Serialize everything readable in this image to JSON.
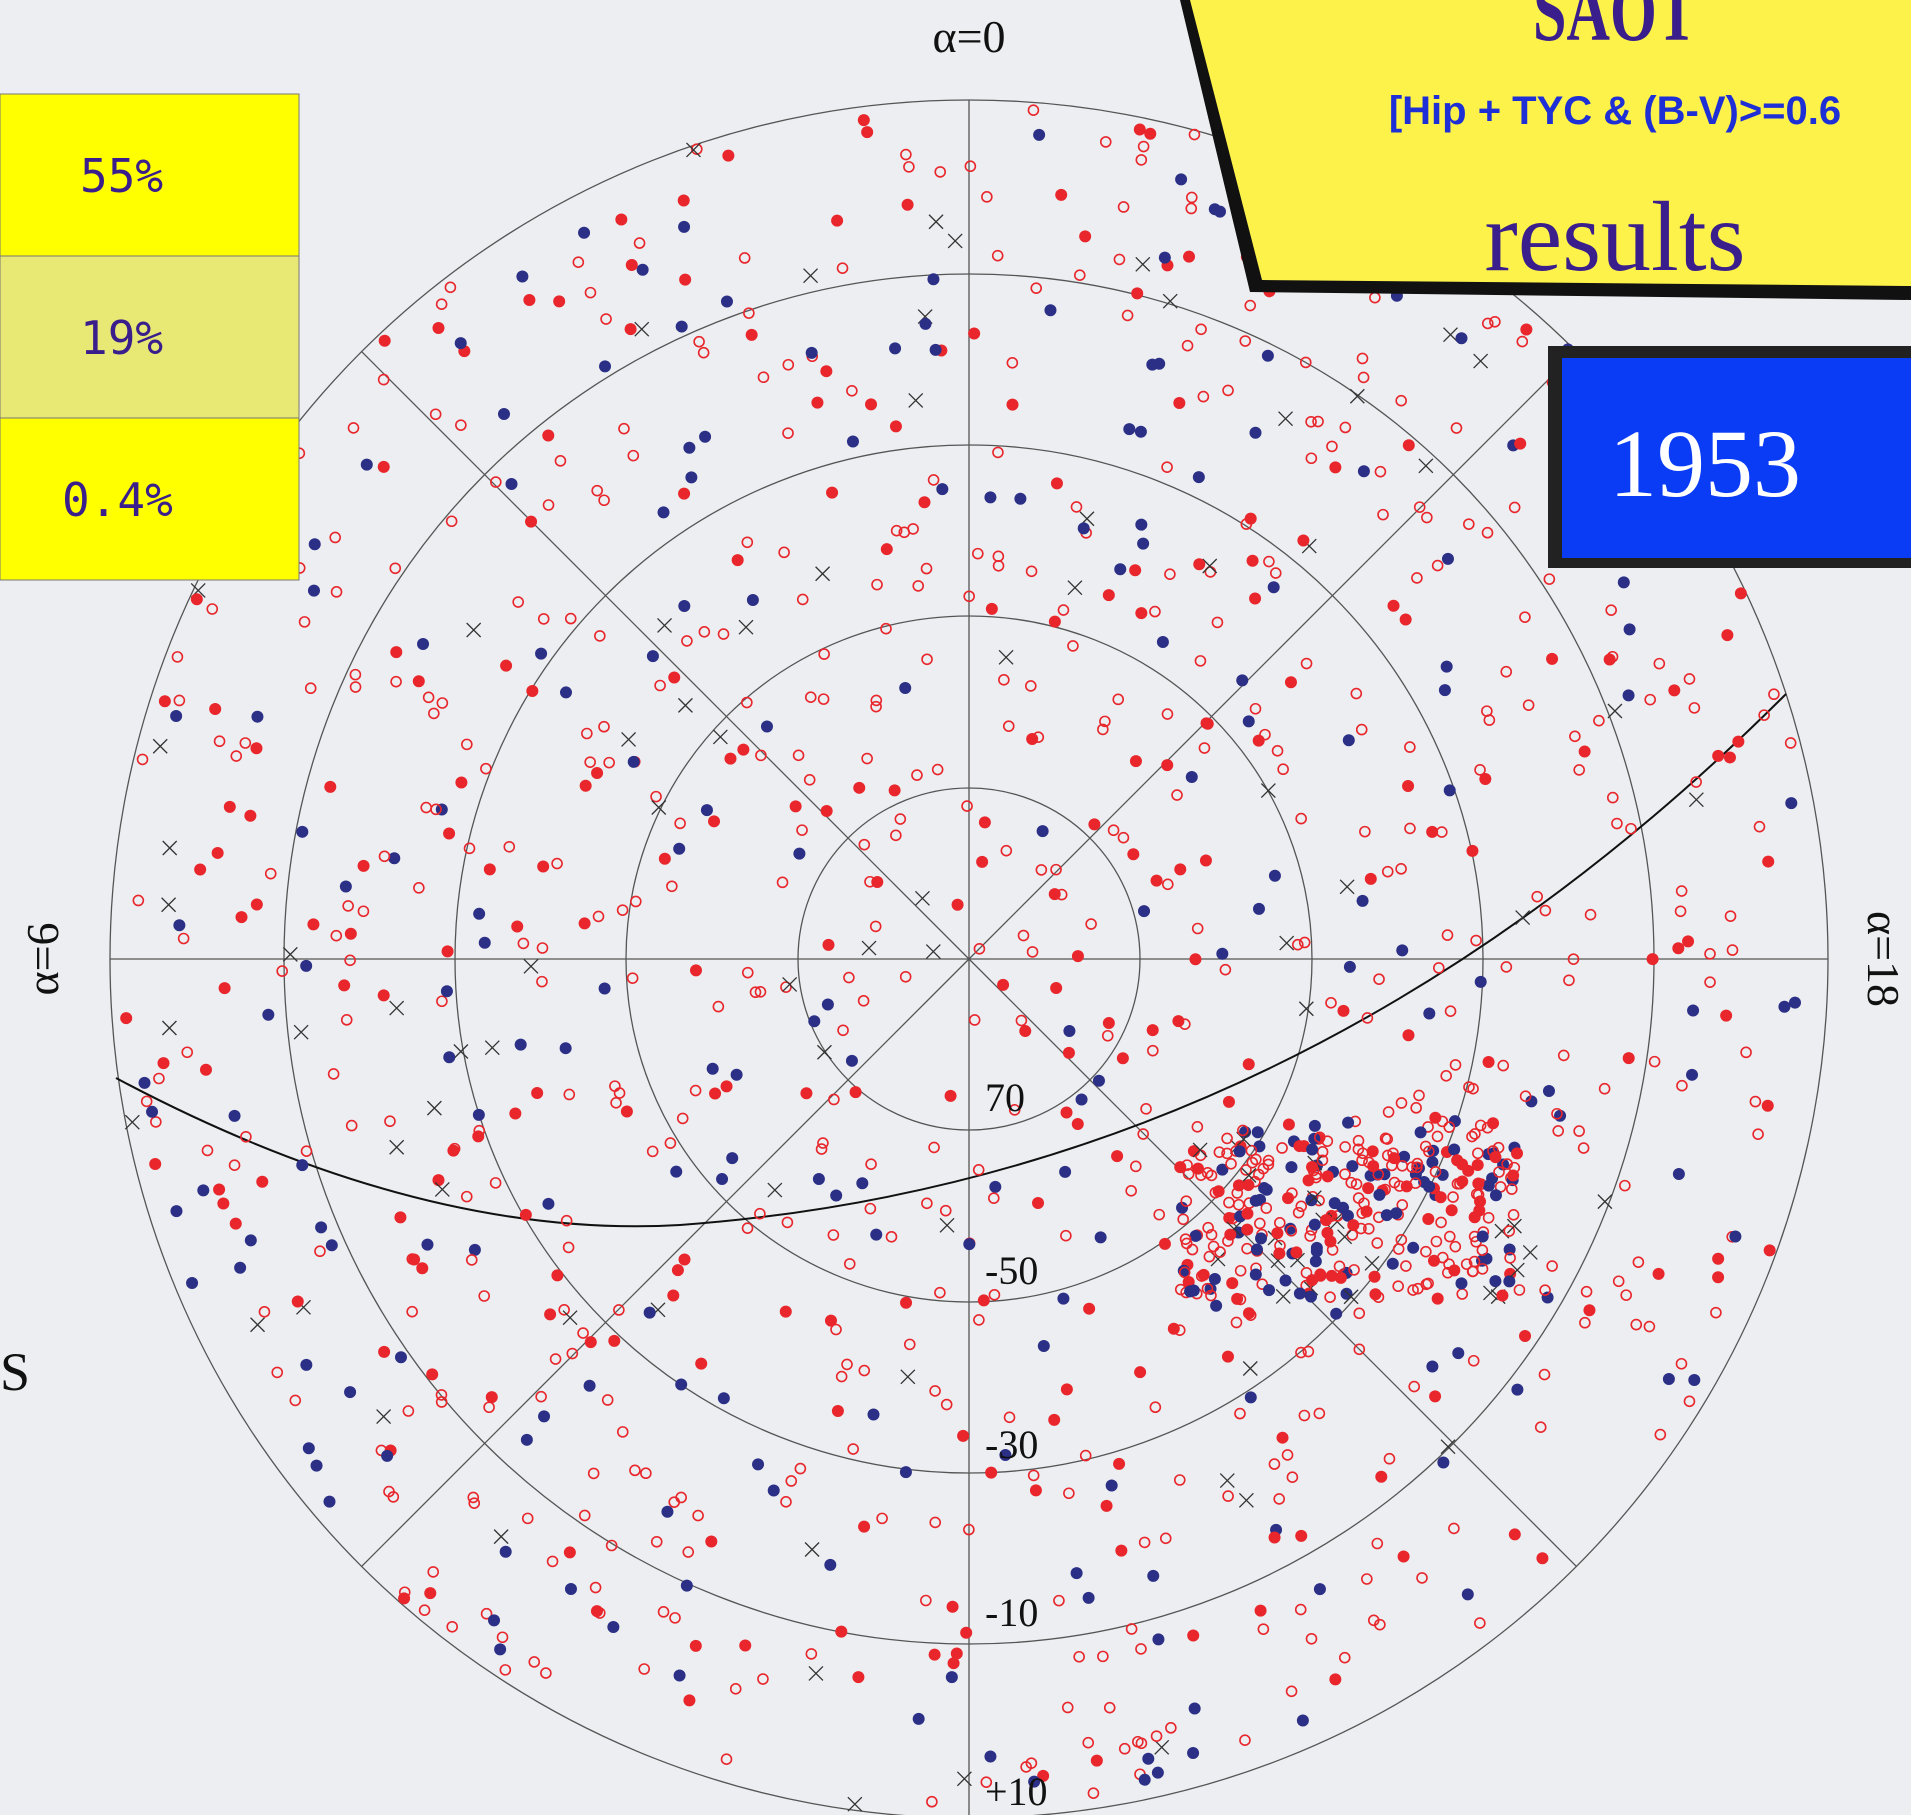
{
  "header": {
    "title": "SAOT",
    "subtitle": "[Hip + TYC & (B-V)>=0.6",
    "caption": "results"
  },
  "year_box": {
    "label": "1953"
  },
  "stats": [
    "55%",
    "19%",
    "0.4%"
  ],
  "plot": {
    "axis_labels": {
      "top": "α=0",
      "left": "α=6",
      "right": "α=18"
    },
    "ring_labels": [
      "70",
      "-50",
      "-30",
      "-10",
      "+10"
    ],
    "side_label": "S"
  }
}
